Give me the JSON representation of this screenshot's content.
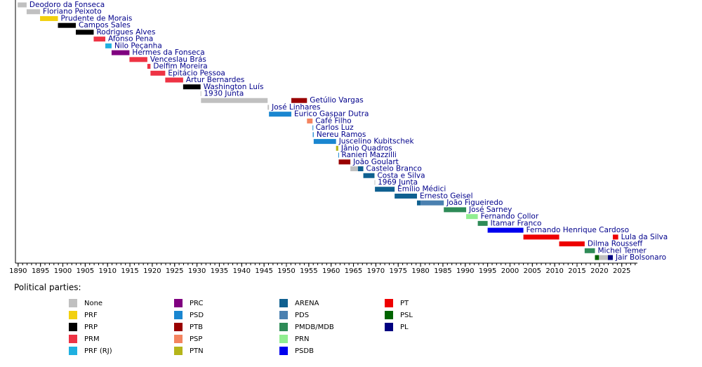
{
  "chart_data": {
    "type": "timeline",
    "categories": [
      "Deodoro da Fonseca",
      "Floriano Peixoto",
      "Prudente de Morais",
      "Campos Sales",
      "Rodrigues Alves",
      "Afonso Pena",
      "Nilo Peçanha",
      "Hermes da Fonseca",
      "Venceslau Brás",
      "Delfim Moreira",
      "Epitácio Pessoa",
      "Artur Bernardes",
      "Washington Luís",
      "1930 Junta",
      "Getúlio Vargas",
      "José Linhares",
      "Eurico Gaspar Dutra",
      "Café Filho",
      "Carlos Luz",
      "Nereu Ramos",
      "Juscelino Kubitschek",
      "Jânio Quadros",
      "Ranieri Mazzilli",
      "João Goulart",
      "Castelo Branco",
      "Costa e Silva",
      "1969 Junta",
      "Emílio Médici",
      "Ernesto Geisel",
      "João Figueiredo",
      "José Sarney",
      "Fernando Collor",
      "Itamar Franco",
      "Fernando Henrique Cardoso",
      "Lula da Silva",
      "Dilma Rousseff",
      "Michel Temer",
      "Jair Bolsonaro"
    ],
    "legend_title": "Political parties:",
    "series": [
      {
        "name": "None",
        "color": "#c0c0c0",
        "values": [
          [
            [
              1889.9,
              1891.9
            ]
          ],
          [
            [
              1891.9,
              1894.9
            ]
          ],
          null,
          null,
          null,
          null,
          null,
          null,
          null,
          null,
          null,
          null,
          null,
          [
            [
              1930.8,
              1930.9
            ]
          ],
          [
            [
              1930.9,
              1945.8
            ]
          ],
          [
            [
              1945.8,
              1946.1
            ]
          ],
          null,
          null,
          null,
          null,
          null,
          null,
          null,
          null,
          [
            [
              1964.3,
              1966
            ]
          ],
          null,
          [
            [
              1969.7,
              1969.8
            ]
          ],
          null,
          null,
          null,
          null,
          null,
          null,
          null,
          null,
          null,
          null,
          [
            [
              2019.9,
              2021.9
            ]
          ]
        ]
      },
      {
        "name": "PRF",
        "color": "#f2d00f",
        "values": [
          null,
          null,
          [
            [
              1894.9,
              1898.9
            ]
          ],
          null,
          null,
          null,
          null,
          null,
          null,
          null,
          null,
          null,
          null,
          null,
          null,
          null,
          null,
          null,
          null,
          null,
          null,
          null,
          null,
          null,
          null,
          null,
          null,
          null,
          null,
          null,
          null,
          null,
          null,
          null,
          null,
          null,
          null,
          null
        ]
      },
      {
        "name": "PRP",
        "color": "#000000",
        "values": [
          null,
          null,
          null,
          [
            [
              1898.9,
              1902.9
            ]
          ],
          [
            [
              1902.9,
              1906.9
            ]
          ],
          null,
          null,
          null,
          null,
          null,
          null,
          null,
          [
            [
              1926.9,
              1930.8
            ]
          ],
          null,
          null,
          null,
          null,
          null,
          null,
          null,
          null,
          null,
          null,
          null,
          null,
          null,
          null,
          null,
          null,
          null,
          null,
          null,
          null,
          null,
          null,
          null,
          null,
          null
        ]
      },
      {
        "name": "PRM",
        "color": "#ee3344",
        "values": [
          null,
          null,
          null,
          null,
          null,
          [
            [
              1906.9,
              1909.5
            ]
          ],
          null,
          null,
          [
            [
              1914.9,
              1918.9
            ]
          ],
          [
            [
              1918.9,
              1919.6
            ]
          ],
          [
            [
              1919.6,
              1922.9
            ]
          ],
          [
            [
              1922.9,
              1926.9
            ]
          ],
          null,
          null,
          null,
          null,
          null,
          null,
          null,
          null,
          null,
          null,
          null,
          null,
          null,
          null,
          null,
          null,
          null,
          null,
          null,
          null,
          null,
          null,
          null,
          null,
          null,
          null
        ]
      },
      {
        "name": "PRF (RJ)",
        "color": "#1fb0e0",
        "values": [
          null,
          null,
          null,
          null,
          null,
          null,
          [
            [
              1909.5,
              1910.9
            ]
          ],
          null,
          null,
          null,
          null,
          null,
          null,
          null,
          null,
          null,
          null,
          null,
          null,
          null,
          null,
          null,
          null,
          null,
          null,
          null,
          null,
          null,
          null,
          null,
          null,
          null,
          null,
          null,
          null,
          null,
          null,
          null
        ]
      },
      {
        "name": "PRC",
        "color": "#800080",
        "values": [
          null,
          null,
          null,
          null,
          null,
          null,
          null,
          [
            [
              1910.9,
              1914.9
            ]
          ],
          null,
          null,
          null,
          null,
          null,
          null,
          null,
          null,
          null,
          null,
          null,
          null,
          null,
          null,
          null,
          null,
          null,
          null,
          null,
          null,
          null,
          null,
          null,
          null,
          null,
          null,
          null,
          null,
          null,
          null
        ]
      },
      {
        "name": "PSD",
        "color": "#1a86d0",
        "values": [
          null,
          null,
          null,
          null,
          null,
          null,
          null,
          null,
          null,
          null,
          null,
          null,
          null,
          null,
          null,
          null,
          [
            [
              1946.1,
              1951.1
            ]
          ],
          null,
          [
            [
              1955.85,
              1955.9
            ]
          ],
          [
            [
              1955.9,
              1956.1
            ]
          ],
          [
            [
              1956.1,
              1961.1
            ]
          ],
          null,
          [
            [
              1961.6,
              1961.7
            ]
          ],
          null,
          null,
          null,
          null,
          null,
          null,
          null,
          null,
          null,
          null,
          null,
          null,
          null,
          null,
          null
        ]
      },
      {
        "name": "PTB",
        "color": "#990000",
        "values": [
          null,
          null,
          null,
          null,
          null,
          null,
          null,
          null,
          null,
          null,
          null,
          null,
          null,
          null,
          [
            [
              1951.1,
              1954.6
            ]
          ],
          null,
          null,
          null,
          null,
          null,
          null,
          null,
          null,
          [
            [
              1961.7,
              1964.3
            ]
          ],
          null,
          null,
          null,
          null,
          null,
          null,
          null,
          null,
          null,
          null,
          null,
          null,
          null,
          null
        ]
      },
      {
        "name": "PSP",
        "color": "#f4845f",
        "values": [
          null,
          null,
          null,
          null,
          null,
          null,
          null,
          null,
          null,
          null,
          null,
          null,
          null,
          null,
          null,
          null,
          null,
          [
            [
              1954.6,
              1955.85
            ]
          ],
          null,
          null,
          null,
          null,
          null,
          null,
          null,
          null,
          null,
          null,
          null,
          null,
          null,
          null,
          null,
          null,
          null,
          null,
          null,
          null
        ]
      },
      {
        "name": "PTN",
        "color": "#b5b51a",
        "values": [
          null,
          null,
          null,
          null,
          null,
          null,
          null,
          null,
          null,
          null,
          null,
          null,
          null,
          null,
          null,
          null,
          null,
          null,
          null,
          null,
          null,
          [
            [
              1961.1,
              1961.6
            ]
          ],
          null,
          null,
          null,
          null,
          null,
          null,
          null,
          null,
          null,
          null,
          null,
          null,
          null,
          null,
          null,
          null
        ]
      },
      {
        "name": "ARENA",
        "color": "#0f6090",
        "values": [
          null,
          null,
          null,
          null,
          null,
          null,
          null,
          null,
          null,
          null,
          null,
          null,
          null,
          null,
          null,
          null,
          null,
          null,
          null,
          null,
          null,
          null,
          null,
          null,
          [
            [
              1966,
              1967.2
            ]
          ],
          [
            [
              1967.2,
              1969.7
            ]
          ],
          null,
          [
            [
              1969.8,
              1974.2
            ]
          ],
          [
            [
              1974.2,
              1979.2
            ]
          ],
          [
            [
              1979.2,
              1980
            ]
          ],
          null,
          null,
          null,
          null,
          null,
          null,
          null,
          null
        ]
      },
      {
        "name": "PDS",
        "color": "#4a80b0",
        "values": [
          null,
          null,
          null,
          null,
          null,
          null,
          null,
          null,
          null,
          null,
          null,
          null,
          null,
          null,
          null,
          null,
          null,
          null,
          null,
          null,
          null,
          null,
          null,
          null,
          null,
          null,
          null,
          null,
          null,
          [
            [
              1980,
              1985.2
            ]
          ],
          null,
          null,
          null,
          null,
          null,
          null,
          null,
          null
        ]
      },
      {
        "name": "PMDB/MDB",
        "color": "#2e8b57",
        "values": [
          null,
          null,
          null,
          null,
          null,
          null,
          null,
          null,
          null,
          null,
          null,
          null,
          null,
          null,
          null,
          null,
          null,
          null,
          null,
          null,
          null,
          null,
          null,
          null,
          null,
          null,
          null,
          null,
          null,
          null,
          [
            [
              1985.2,
              1990.2
            ]
          ],
          null,
          [
            [
              1992.8,
              1995
            ]
          ],
          null,
          null,
          null,
          [
            [
              2016.7,
              2019
            ]
          ],
          null
        ]
      },
      {
        "name": "PRN",
        "color": "#90ee90",
        "values": [
          null,
          null,
          null,
          null,
          null,
          null,
          null,
          null,
          null,
          null,
          null,
          null,
          null,
          null,
          null,
          null,
          null,
          null,
          null,
          null,
          null,
          null,
          null,
          null,
          null,
          null,
          null,
          null,
          null,
          null,
          null,
          [
            [
              1990.2,
              1992.8
            ]
          ],
          null,
          null,
          null,
          null,
          null,
          null
        ]
      },
      {
        "name": "PSDB",
        "color": "#0000ee",
        "values": [
          null,
          null,
          null,
          null,
          null,
          null,
          null,
          null,
          null,
          null,
          null,
          null,
          null,
          null,
          null,
          null,
          null,
          null,
          null,
          null,
          null,
          null,
          null,
          null,
          null,
          null,
          null,
          null,
          null,
          null,
          null,
          null,
          null,
          [
            [
              1995,
              2003
            ]
          ],
          null,
          null,
          null,
          null
        ]
      },
      {
        "name": "PT",
        "color": "#ee0000",
        "values": [
          null,
          null,
          null,
          null,
          null,
          null,
          null,
          null,
          null,
          null,
          null,
          null,
          null,
          null,
          null,
          null,
          null,
          null,
          null,
          null,
          null,
          null,
          null,
          null,
          null,
          null,
          null,
          null,
          null,
          null,
          null,
          null,
          null,
          null,
          [
            [
              2003,
              2011
            ],
            [
              2023,
              2024.2
            ]
          ],
          [
            [
              2011,
              2016.7
            ]
          ],
          null,
          null
        ]
      },
      {
        "name": "PSL",
        "color": "#006400",
        "values": [
          null,
          null,
          null,
          null,
          null,
          null,
          null,
          null,
          null,
          null,
          null,
          null,
          null,
          null,
          null,
          null,
          null,
          null,
          null,
          null,
          null,
          null,
          null,
          null,
          null,
          null,
          null,
          null,
          null,
          null,
          null,
          null,
          null,
          null,
          null,
          null,
          null,
          [
            [
              2019,
              2019.9
            ]
          ]
        ]
      },
      {
        "name": "PL",
        "color": "#000080",
        "values": [
          null,
          null,
          null,
          null,
          null,
          null,
          null,
          null,
          null,
          null,
          null,
          null,
          null,
          null,
          null,
          null,
          null,
          null,
          null,
          null,
          null,
          null,
          null,
          null,
          null,
          null,
          null,
          null,
          null,
          null,
          null,
          null,
          null,
          null,
          null,
          null,
          null,
          [
            [
              2021.9,
              2023
            ]
          ]
        ]
      }
    ],
    "xlim": [
      1889.4,
      2028.5
    ],
    "xticks": [
      1890,
      1895,
      1900,
      1905,
      1910,
      1915,
      1920,
      1925,
      1930,
      1935,
      1940,
      1945,
      1950,
      1955,
      1960,
      1965,
      1970,
      1975,
      1980,
      1985,
      1990,
      1995,
      2000,
      2005,
      2010,
      2015,
      2020,
      2025
    ],
    "xminor": 1
  }
}
